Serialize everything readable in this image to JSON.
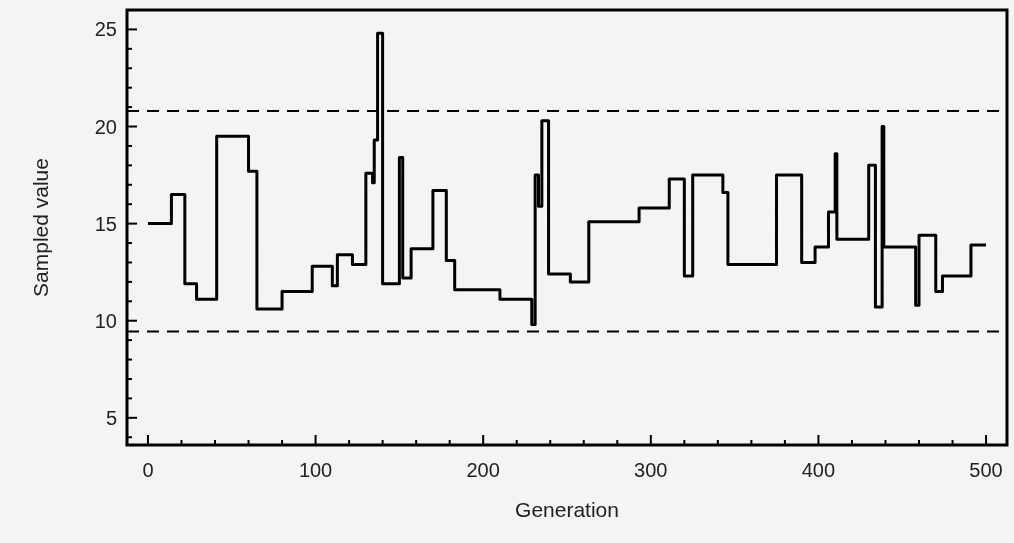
{
  "chart_data": {
    "type": "step",
    "xlabel": "Generation",
    "ylabel": "Sampled value",
    "x": [
      0,
      14,
      22,
      29,
      41,
      60,
      65,
      80,
      98,
      110,
      113,
      122,
      130,
      134,
      135,
      137,
      140,
      150,
      152,
      157,
      170,
      178,
      183,
      210,
      229,
      231,
      233,
      235,
      239,
      252,
      263,
      293,
      311,
      320,
      325,
      343,
      346,
      375,
      390,
      398,
      406,
      410,
      411,
      430,
      434,
      438,
      439,
      458,
      460,
      470,
      474,
      491,
      500
    ],
    "series": [
      {
        "color": "#000000",
        "values": [
          15,
          16.5,
          11.9,
          11.1,
          19.5,
          17.7,
          10.6,
          11.5,
          12.8,
          11.8,
          13.4,
          12.9,
          17.6,
          17.1,
          19.3,
          24.8,
          11.9,
          18.4,
          12.2,
          13.7,
          16.7,
          13.1,
          11.6,
          11.1,
          9.8,
          17.5,
          15.9,
          20.3,
          12.4,
          12,
          15.1,
          15.8,
          17.3,
          12.3,
          17.5,
          16.6,
          12.9,
          17.5,
          13,
          13.8,
          15.6,
          18.6,
          14.2,
          18,
          10.7,
          20,
          13.8,
          10.8,
          14.4,
          11.5,
          12.3,
          13.9,
          13.9
        ]
      }
    ],
    "xlim": [
      -12.5,
      512.5
    ],
    "xticks": [
      0,
      {
        "value": 20,
        "label": null
      },
      {
        "value": 40,
        "label": null
      },
      {
        "value": 60,
        "label": null
      },
      {
        "value": 80,
        "label": null
      },
      100,
      {
        "value": 120,
        "label": null
      },
      {
        "value": 140,
        "label": null
      },
      {
        "value": 160,
        "label": null
      },
      {
        "value": 180,
        "label": null
      },
      200,
      {
        "value": 220,
        "label": null
      },
      {
        "value": 240,
        "label": null
      },
      {
        "value": 260,
        "label": null
      },
      {
        "value": 280,
        "label": null
      },
      300,
      {
        "value": 320,
        "label": null
      },
      {
        "value": 340,
        "label": null
      },
      {
        "value": 360,
        "label": null
      },
      {
        "value": 380,
        "label": null
      },
      400,
      {
        "value": 420,
        "label": null
      },
      {
        "value": 440,
        "label": null
      },
      {
        "value": 460,
        "label": null
      },
      {
        "value": 480,
        "label": null
      },
      500
    ],
    "ylim": [
      3.6,
      26
    ],
    "yticks": [
      {
        "value": 4,
        "label": null
      },
      5,
      {
        "value": 6,
        "label": null
      },
      {
        "value": 7,
        "label": null
      },
      {
        "value": 8,
        "label": null
      },
      {
        "value": 9,
        "label": null
      },
      10,
      {
        "value": 11,
        "label": null
      },
      {
        "value": 12,
        "label": null
      },
      {
        "value": 13,
        "label": null
      },
      {
        "value": 14,
        "label": null
      },
      15,
      {
        "value": 16,
        "label": null
      },
      {
        "value": 17,
        "label": null
      },
      {
        "value": 18,
        "label": null
      },
      {
        "value": 19,
        "label": null
      },
      20,
      {
        "value": 21,
        "label": null
      },
      {
        "value": 22,
        "label": null
      },
      {
        "value": 23,
        "label": null
      },
      {
        "value": 24,
        "label": null
      },
      25
    ],
    "ref_lines": [
      {
        "axis": "y",
        "value": 20.8,
        "line_style": "dashed",
        "color": "#000000"
      },
      {
        "axis": "y",
        "value": 9.45,
        "line_style": "dashed",
        "color": "#000000"
      }
    ]
  }
}
